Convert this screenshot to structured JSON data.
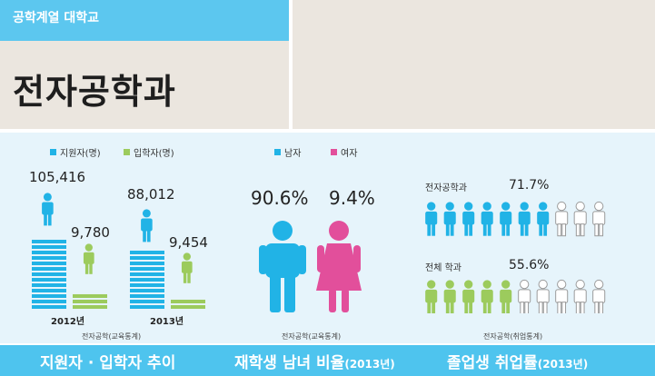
{
  "header": {
    "category": "공학계열 대학교",
    "department": "전자공학과"
  },
  "colors": {
    "accent_blue": "#21b3e6",
    "accent_green": "#9ccb5d",
    "accent_pink": "#e24f9b",
    "header_bg": "#ebe6df",
    "main_bg": "#e6f4fb",
    "footer_bg": "#4ec4ee"
  },
  "section_applicants": {
    "legend": [
      "지원자(명)",
      "입학자(명)"
    ],
    "years": [
      {
        "label": "2012년",
        "applicants": "105,416",
        "admitted": "9,780"
      },
      {
        "label": "2013년",
        "applicants": "88,012",
        "admitted": "9,454"
      }
    ],
    "source": "전자공학(교육통계)"
  },
  "section_gender": {
    "legend": [
      "남자",
      "여자"
    ],
    "male_pct": "90.6%",
    "female_pct": "9.4%",
    "source": "전자공학(교육통계)"
  },
  "section_employment": {
    "rows": [
      {
        "label": "전자공학과",
        "value": "71.7%",
        "fraction": 0.717
      },
      {
        "label": "전체 학과",
        "value": "55.6%",
        "fraction": 0.556
      }
    ],
    "source": "전자공학(취업통계)"
  },
  "footer": {
    "applicants_title": "지원자 · 입학자 추이",
    "gender_title": "재학생 남녀 비율",
    "gender_year": "(2013년)",
    "employment_title": "졸업생 취업률",
    "employment_year": "(2013년)"
  }
}
